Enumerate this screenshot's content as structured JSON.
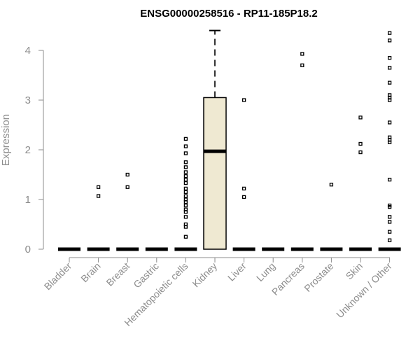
{
  "chart_data": {
    "type": "box",
    "title": "ENSG00000258516 - RP11-185P18.2",
    "xlabel": "",
    "ylabel": "Expression",
    "ylim": [
      0,
      4.4
    ],
    "yticks": [
      0,
      1,
      2,
      3,
      4
    ],
    "categories": [
      "Bladder",
      "Brain",
      "Breast",
      "Gastric",
      "Hematopoietic cells",
      "Kidney",
      "Liver",
      "Lung",
      "Pancreas",
      "Prostate",
      "Skin",
      "Unknown / Other"
    ],
    "box_fill": "#efe9d2",
    "boxes": [
      {
        "category": "Bladder",
        "min": 0,
        "q1": 0,
        "median": 0,
        "q3": 0,
        "max": 0,
        "outliers": []
      },
      {
        "category": "Brain",
        "min": 0,
        "q1": 0,
        "median": 0,
        "q3": 0,
        "max": 0,
        "outliers": [
          1.25,
          1.07
        ]
      },
      {
        "category": "Breast",
        "min": 0,
        "q1": 0,
        "median": 0,
        "q3": 0,
        "max": 0,
        "outliers": [
          1.5,
          1.25
        ]
      },
      {
        "category": "Gastric",
        "min": 0,
        "q1": 0,
        "median": 0,
        "q3": 0,
        "max": 0,
        "outliers": []
      },
      {
        "category": "Hematopoietic cells",
        "min": 0,
        "q1": 0,
        "median": 0,
        "q3": 0,
        "max": 0,
        "outliers": [
          2.22,
          2.07,
          1.93,
          1.75,
          1.65,
          1.55,
          1.47,
          1.4,
          1.33,
          1.22,
          1.15,
          1.07,
          1.0,
          0.95,
          0.88,
          0.8,
          0.75,
          0.65,
          0.5,
          0.45,
          0.25
        ]
      },
      {
        "category": "Kidney",
        "min": 0,
        "q1": 0,
        "median": 1.97,
        "q3": 3.05,
        "max": 4.4,
        "outliers": []
      },
      {
        "category": "Liver",
        "min": 0,
        "q1": 0,
        "median": 0,
        "q3": 0,
        "max": 0,
        "outliers": [
          3.0,
          1.22,
          1.05
        ]
      },
      {
        "category": "Lung",
        "min": 0,
        "q1": 0,
        "median": 0,
        "q3": 0,
        "max": 0,
        "outliers": []
      },
      {
        "category": "Pancreas",
        "min": 0,
        "q1": 0,
        "median": 0,
        "q3": 0,
        "max": 0,
        "outliers": [
          3.93,
          3.7
        ]
      },
      {
        "category": "Prostate",
        "min": 0,
        "q1": 0,
        "median": 0,
        "q3": 0,
        "max": 0,
        "outliers": [
          1.3
        ]
      },
      {
        "category": "Skin",
        "min": 0,
        "q1": 0,
        "median": 0,
        "q3": 0,
        "max": 0,
        "outliers": [
          2.65,
          2.12,
          1.95
        ]
      },
      {
        "category": "Unknown / Other",
        "min": 0,
        "q1": 0,
        "median": 0,
        "q3": 0,
        "max": 0,
        "outliers": [
          4.35,
          4.2,
          3.85,
          3.65,
          3.35,
          3.1,
          3.05,
          3.0,
          2.55,
          2.25,
          2.2,
          2.15,
          1.4,
          0.88,
          0.85,
          0.65,
          0.55,
          0.35,
          0.18
        ]
      }
    ]
  }
}
